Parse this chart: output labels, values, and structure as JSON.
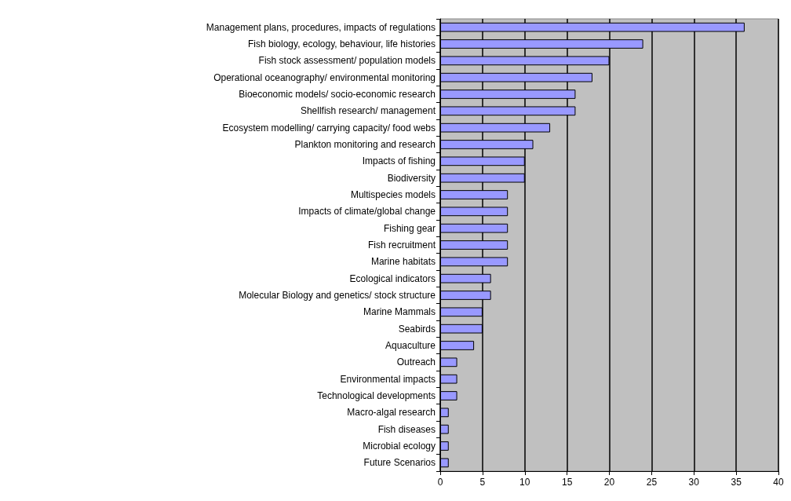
{
  "chart_data": {
    "type": "bar",
    "orientation": "horizontal",
    "categories": [
      "Management plans, procedures, impacts of regulations",
      "Fish biology, ecology, behaviour, life histories",
      "Fish stock assessment/ population models",
      "Operational oceanography/ environmental monitoring",
      "Bioeconomic models/ socio-economic research",
      "Shellfish research/ management",
      "Ecosystem modelling/ carrying capacity/ food webs",
      "Plankton monitoring and research",
      "Impacts of fishing",
      "Biodiversity",
      "Multispecies models",
      "Impacts of climate/global change",
      "Fishing gear",
      "Fish recruitment",
      "Marine habitats",
      "Ecological indicators",
      "Molecular Biology and genetics/ stock structure",
      "Marine Mammals",
      "Seabirds",
      "Aquaculture",
      "Outreach",
      "Environmental impacts",
      "Technological developments",
      "Macro-algal research",
      "Fish diseases",
      "Microbial ecology",
      "Future Scenarios"
    ],
    "values": [
      36,
      24,
      20,
      18,
      16,
      16,
      13,
      11,
      10,
      10,
      8,
      8,
      8,
      8,
      8,
      6,
      6,
      5,
      5,
      4,
      2,
      2,
      2,
      1,
      1,
      1,
      1
    ],
    "color": "#9999ff",
    "xlim": [
      0,
      40
    ],
    "xticks": [
      0,
      5,
      10,
      15,
      20,
      25,
      30,
      35,
      40
    ],
    "grid": "x"
  }
}
